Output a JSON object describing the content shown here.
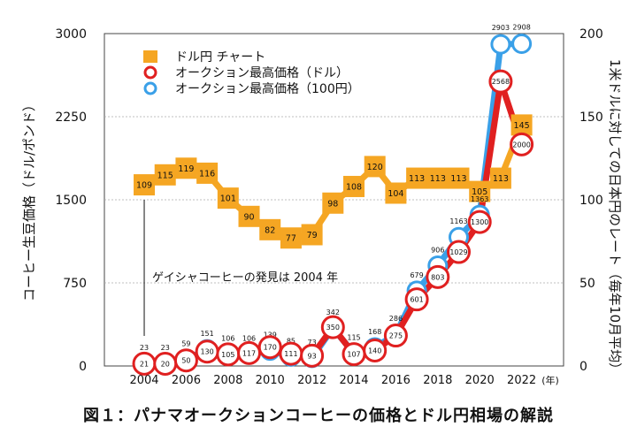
{
  "caption": "図１：パナマオークションコーヒーの価格とドル円相場の解説",
  "chart_data": {
    "type": "line",
    "x": [
      2004,
      2005,
      2006,
      2007,
      2008,
      2009,
      2010,
      2011,
      2012,
      2013,
      2014,
      2015,
      2016,
      2017,
      2018,
      2019,
      2020,
      2021,
      2022
    ],
    "x_ticks": [
      "2004",
      "2006",
      "2008",
      "2010",
      "2012",
      "2014",
      "2016",
      "2018",
      "2020",
      "2022"
    ],
    "x_unit": "(年)",
    "left_axis": {
      "label": "コーヒー生豆価格（ドル/ポンド）",
      "ticks": [
        "0",
        "750",
        "1500",
        "2250",
        "3000"
      ],
      "range": [
        0,
        3000
      ]
    },
    "right_axis": {
      "label": "1米ドルに対しての日本円のレート（毎年10月平均）",
      "ticks": [
        "0",
        "50",
        "100",
        "150",
        "200"
      ],
      "range": [
        0,
        200
      ]
    },
    "grid": true,
    "legend_position": "top-left",
    "series": [
      {
        "name": "ドル円 チャート",
        "axis": "right",
        "color": "#f5a623",
        "x": [
          2004,
          2005,
          2006,
          2007,
          2008,
          2009,
          2010,
          2011,
          2012,
          2013,
          2014,
          2015,
          2016,
          2017,
          2018,
          2019,
          2020,
          2021,
          2022
        ],
        "values": [
          109,
          115,
          119,
          116,
          101,
          90,
          82,
          77,
          79,
          98,
          108,
          120,
          104,
          113,
          113,
          113,
          105,
          113,
          145
        ],
        "labels": [
          "109",
          "115",
          "119",
          "116",
          "101",
          "90",
          "82",
          "77",
          "79",
          "98",
          "108",
          "120",
          "104",
          "113",
          "113",
          "113",
          "105",
          "113",
          "145"
        ]
      },
      {
        "name": "オークション最高価格（ドル）",
        "axis": "left",
        "color": "#e02020",
        "x": [
          2004,
          2005,
          2006,
          2007,
          2008,
          2009,
          2010,
          2011,
          2012,
          2013,
          2014,
          2015,
          2016,
          2017,
          2018,
          2019,
          2020,
          2021,
          2022
        ],
        "values": [
          21,
          20,
          50,
          130,
          105,
          117,
          170,
          111,
          93,
          350,
          107,
          140,
          275,
          601,
          803,
          1029,
          1300,
          2568,
          2000
        ],
        "labels": [
          "21",
          "20",
          "50",
          "130",
          "105",
          "117",
          "170",
          "111",
          "93",
          "350",
          "107",
          "140",
          "275",
          "601",
          "803",
          "1029",
          "1300",
          "2568",
          "2000"
        ]
      },
      {
        "name": "オークション最高価格（100円）",
        "axis": "left",
        "color": "#3aa0e8",
        "x": [
          2004,
          2005,
          2006,
          2007,
          2008,
          2009,
          2010,
          2011,
          2012,
          2013,
          2014,
          2015,
          2016,
          2017,
          2018,
          2019,
          2020,
          2021,
          2022
        ],
        "values": [
          23,
          23,
          59,
          151,
          106,
          106,
          139,
          85,
          73,
          342,
          115,
          168,
          286,
          679,
          906,
          1163,
          1363,
          2903,
          2908
        ],
        "labels": [
          "23",
          "23",
          "59",
          "151",
          "106",
          "106",
          "139",
          "85",
          "73",
          "342",
          "115",
          "168",
          "286",
          "679",
          "906",
          "1163",
          "1363",
          "2903",
          "2908"
        ]
      }
    ],
    "annotation": {
      "text": "ゲイシャコーヒーの発見は 2004 年",
      "x": 2004
    }
  }
}
